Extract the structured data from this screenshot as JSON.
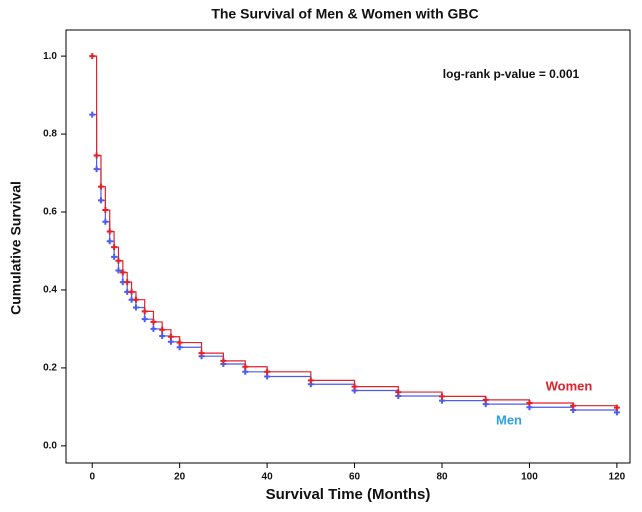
{
  "chart_data": {
    "type": "survival",
    "title": "The Survival of Men & Women with GBC",
    "x_label": "Survival Time (Months)",
    "y_label": "Cumulative Survival",
    "annotation": "log-rank p-value = 0.001",
    "x": [
      0,
      1,
      2,
      3,
      4,
      5,
      6,
      7,
      8,
      9,
      10,
      12,
      14,
      16,
      18,
      20,
      25,
      30,
      35,
      40,
      50,
      60,
      70,
      80,
      90,
      100,
      110,
      120
    ],
    "series": [
      {
        "name": "Women",
        "color": "#e0222a",
        "values": [
          1.0,
          0.745,
          0.665,
          0.605,
          0.55,
          0.51,
          0.475,
          0.445,
          0.42,
          0.395,
          0.375,
          0.345,
          0.318,
          0.298,
          0.28,
          0.265,
          0.238,
          0.218,
          0.203,
          0.19,
          0.168,
          0.152,
          0.138,
          0.127,
          0.118,
          0.11,
          0.103,
          0.098
        ]
      },
      {
        "name": "Men",
        "color": "#4b5cf0",
        "values": [
          0.85,
          0.71,
          0.63,
          0.575,
          0.525,
          0.485,
          0.45,
          0.42,
          0.395,
          0.375,
          0.355,
          0.325,
          0.3,
          0.282,
          0.267,
          0.253,
          0.23,
          0.21,
          0.19,
          0.178,
          0.158,
          0.142,
          0.128,
          0.116,
          0.107,
          0.099,
          0.092,
          0.086
        ]
      }
    ],
    "xlim": [
      -6,
      123
    ],
    "ylim": [
      -0.044,
      1.067
    ],
    "xticks": [
      0,
      20,
      40,
      60,
      80,
      100,
      120
    ],
    "yticks": [
      {
        "value": 0,
        "label": "0.0"
      },
      {
        "value": 0.2,
        "label": "0.2"
      },
      {
        "value": 0.4,
        "label": "0.4"
      },
      {
        "value": 0.6,
        "label": "0.6"
      },
      {
        "value": 0.8,
        "label": "0.8"
      },
      {
        "value": 1,
        "label": "1.0"
      }
    ]
  }
}
